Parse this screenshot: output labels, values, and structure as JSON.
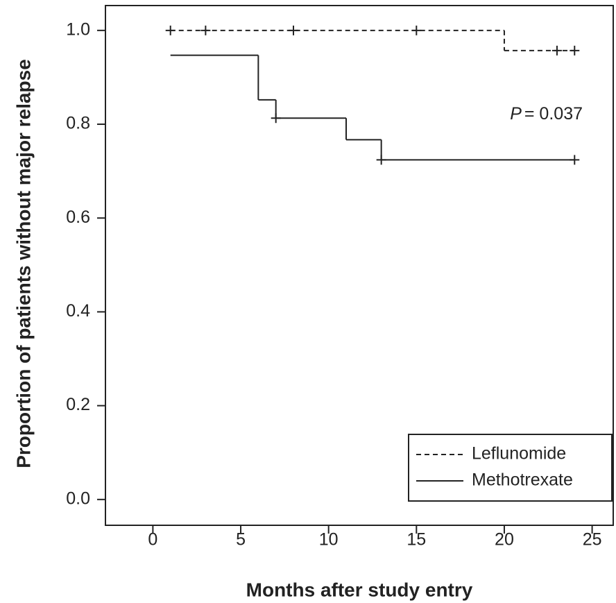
{
  "chart_data": {
    "type": "survival",
    "x_label": "Months after study entry",
    "y_label": "Proportion of patients without major relapse",
    "p_symbol": "P",
    "p_text": "= 0.037",
    "xlim": [
      -2.7,
      26.2
    ],
    "ylim": [
      -0.055,
      1.053
    ],
    "xticks": [
      0,
      5,
      10,
      15,
      20,
      25
    ],
    "yticks": [
      {
        "value": 0,
        "label": "0.0"
      },
      0.2,
      0.4,
      0.6,
      0.8,
      {
        "value": 1,
        "label": "1.0"
      }
    ],
    "legend": "bottom-right",
    "series": [
      {
        "name": "Leflunomide",
        "color": "#222222",
        "dashed": true,
        "x": [
          1,
          20,
          24
        ],
        "values": [
          1.0,
          0.957,
          0.957
        ],
        "censored_x": [
          1,
          3,
          8,
          15,
          23,
          24
        ],
        "censored_values": [
          1.0,
          1.0,
          1.0,
          1.0,
          0.957,
          0.957
        ]
      },
      {
        "name": "Methotrexate",
        "color": "#222222",
        "dashed": false,
        "x": [
          1,
          6,
          7,
          11,
          13,
          24
        ],
        "values": [
          0.947,
          0.852,
          0.813,
          0.767,
          0.724,
          0.724
        ],
        "censored_x": [
          7,
          13,
          24
        ],
        "censored_values": [
          0.813,
          0.724,
          0.724
        ]
      }
    ]
  }
}
